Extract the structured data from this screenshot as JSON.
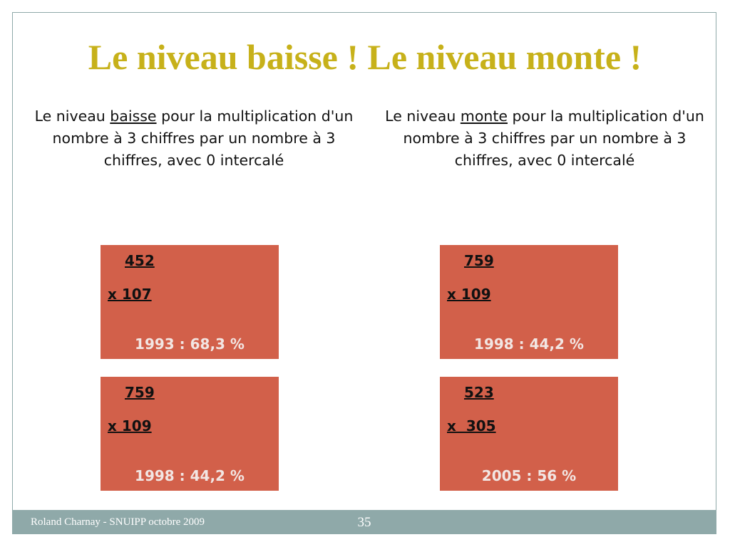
{
  "title": "Le niveau baisse ! Le niveau monte !",
  "left": {
    "pre": "Le niveau ",
    "keyword": "baisse",
    "post": " pour la multiplication d'un nombre à 3 chiffres par un nombre à 3 chiffres, avec 0 intercalé"
  },
  "right": {
    "pre": "Le niveau ",
    "keyword": "monte",
    "post": " pour la multiplication d'un nombre à 3 chiffres par un nombre à 3 chiffres, avec 0 intercalé"
  },
  "boxes": [
    {
      "top": "452",
      "bottom": "x 107",
      "stat": "1993 : 68,3 %"
    },
    {
      "top": "759",
      "bottom": "x 109",
      "stat": "1998 : 44,2 %"
    },
    {
      "top": "759",
      "bottom": "x 109",
      "stat": "1998 : 44,2 %"
    },
    {
      "top": "523",
      "bottom": "x  305",
      "stat": "2005 : 56 %"
    }
  ],
  "footer": {
    "author": "Roland Charnay - SNUIPP octobre 2009",
    "page": "35"
  }
}
